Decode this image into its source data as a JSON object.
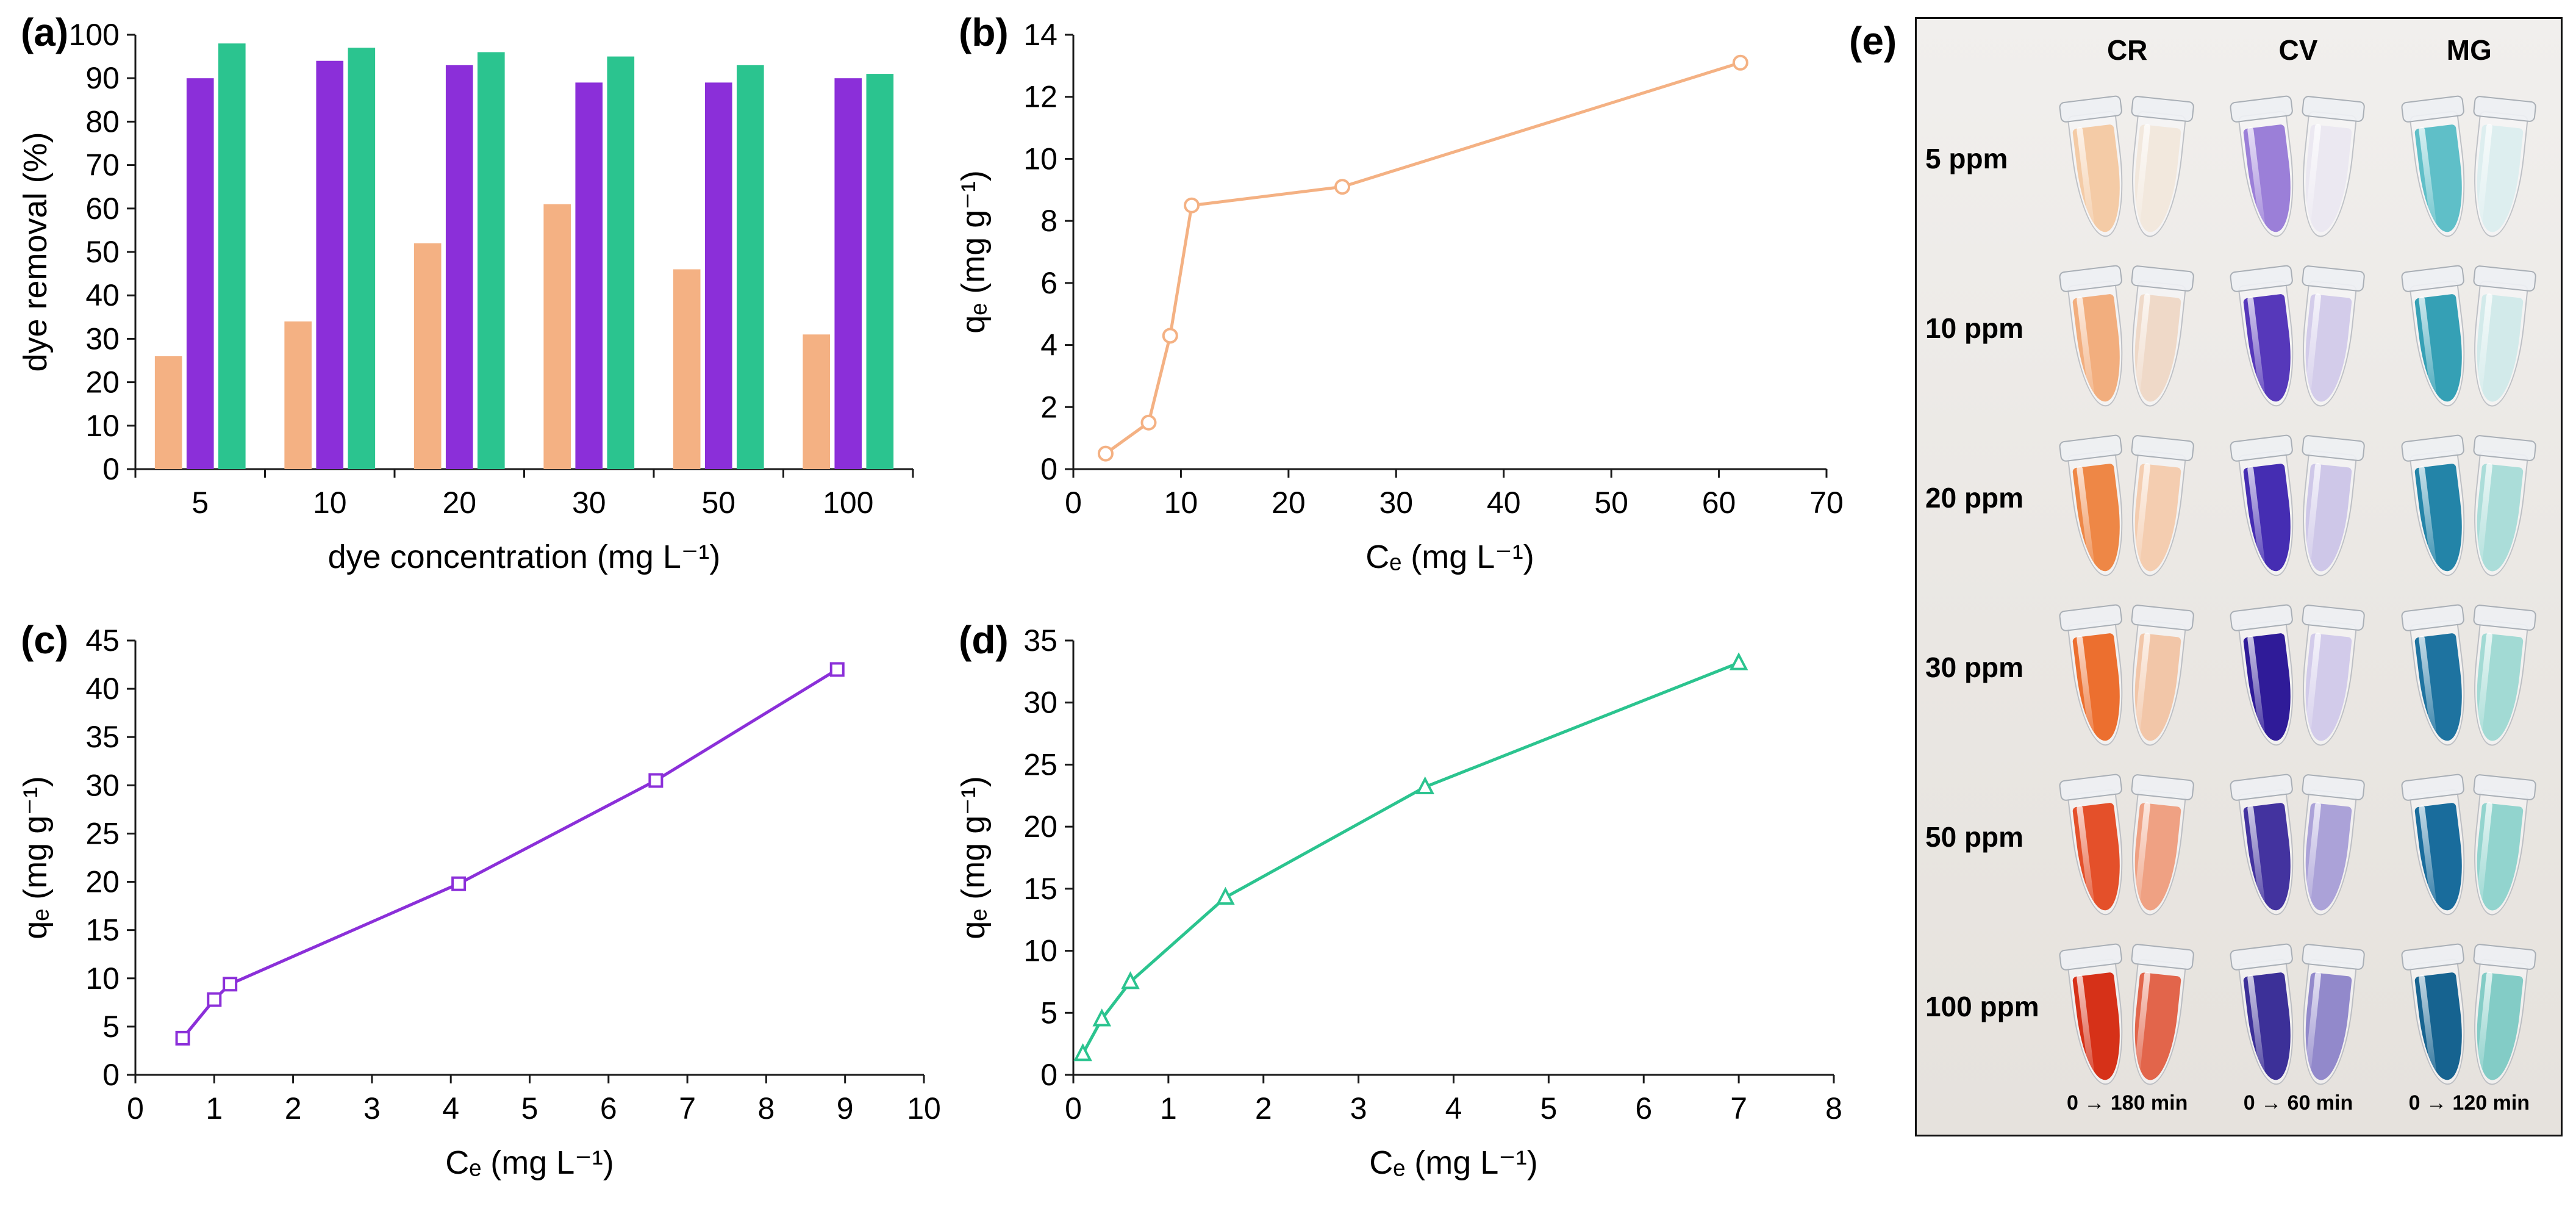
{
  "labels": {
    "a": "(a)",
    "b": "(b)",
    "c": "(c)",
    "d": "(d)",
    "e": "(e)"
  },
  "chart_data": [
    {
      "panel": "a",
      "type": "bar",
      "title": "",
      "xlabel": "dye concentration (mg L⁻¹)",
      "ylabel": "dye removal (%)",
      "categories": [
        "5",
        "10",
        "20",
        "30",
        "50",
        "100"
      ],
      "series": [
        {
          "name": "series-orange",
          "color": "#F4B183",
          "values": [
            26,
            34,
            52,
            61,
            46,
            31
          ]
        },
        {
          "name": "series-purple",
          "color": "#8B2FD9",
          "values": [
            90,
            94,
            93,
            89,
            89,
            90
          ]
        },
        {
          "name": "series-green",
          "color": "#2BC48F",
          "values": [
            98,
            97,
            96,
            95,
            93,
            91
          ]
        }
      ],
      "ylim": [
        0,
        100
      ],
      "ytick": 10,
      "grid": false,
      "legend": "none"
    },
    {
      "panel": "b",
      "type": "line",
      "marker": "circle",
      "color": "#F4B183",
      "xlabel": "Cₑ (mg L⁻¹)",
      "ylabel": "qₑ (mg g⁻¹)",
      "x": [
        3,
        7,
        9,
        11,
        25,
        62
      ],
      "y": [
        0.5,
        1.5,
        4.3,
        8.5,
        9.1,
        13.1
      ],
      "xlim": [
        0,
        70
      ],
      "xtick": 10,
      "ylim": [
        0,
        14
      ],
      "ytick": 2,
      "grid": false,
      "legend": "none"
    },
    {
      "panel": "c",
      "type": "line",
      "marker": "square",
      "color": "#8B2FD9",
      "xlabel": "Cₑ (mg L⁻¹)",
      "ylabel": "qₑ (mg g⁻¹)",
      "x": [
        0.6,
        1.0,
        1.2,
        4.1,
        6.6,
        8.9
      ],
      "y": [
        3.8,
        7.8,
        9.4,
        19.8,
        30.5,
        42.0
      ],
      "xlim": [
        0,
        10
      ],
      "xtick": 1,
      "ylim": [
        0,
        45
      ],
      "ytick": 5,
      "grid": false,
      "legend": "none"
    },
    {
      "panel": "d",
      "type": "line",
      "marker": "triangle",
      "color": "#2BC48F",
      "xlabel": "Cₑ (mg L⁻¹)",
      "ylabel": "qₑ (mg g⁻¹)",
      "x": [
        0.1,
        0.3,
        0.6,
        1.6,
        3.7,
        7.0
      ],
      "y": [
        1.7,
        4.5,
        7.5,
        14.3,
        23.2,
        33.2
      ],
      "xlim": [
        0,
        8
      ],
      "xtick": 1,
      "ylim": [
        0,
        35
      ],
      "ytick": 5,
      "grid": false,
      "legend": "none"
    }
  ],
  "photo": {
    "columns": [
      "CR",
      "CV",
      "MG"
    ],
    "rows": [
      "5 ppm",
      "10 ppm",
      "20 ppm",
      "30 ppm",
      "50 ppm",
      "100 ppm"
    ],
    "time_labels": [
      "0 → 180 min",
      "0 → 60 min",
      "0 → 120 min"
    ],
    "tube_colors": {
      "CR": [
        [
          "#F4CBA6",
          "#F2E8DD"
        ],
        [
          "#F2AE7E",
          "#EFD9C8"
        ],
        [
          "#EE8746",
          "#F4CDB0"
        ],
        [
          "#EC6F2F",
          "#F2C6A8"
        ],
        [
          "#E4502A",
          "#EFA183"
        ],
        [
          "#D63118",
          "#E2654B"
        ]
      ],
      "CV": [
        [
          "#9B7FD8",
          "#EBE8F1"
        ],
        [
          "#5638BA",
          "#D3CCEA"
        ],
        [
          "#452DB2",
          "#CEC7E8"
        ],
        [
          "#2F1B98",
          "#D2CBEA"
        ],
        [
          "#43339F",
          "#ABA2D8"
        ],
        [
          "#3C3098",
          "#9289CB"
        ]
      ],
      "MG": [
        [
          "#5FBFC8",
          "#DDEEEF"
        ],
        [
          "#35A0B5",
          "#D2EAEA"
        ],
        [
          "#2384A8",
          "#ABDDD9"
        ],
        [
          "#1E73A0",
          "#A2DAD4"
        ],
        [
          "#196C9C",
          "#92D4CE"
        ],
        [
          "#166390",
          "#83CCC6"
        ]
      ]
    }
  }
}
